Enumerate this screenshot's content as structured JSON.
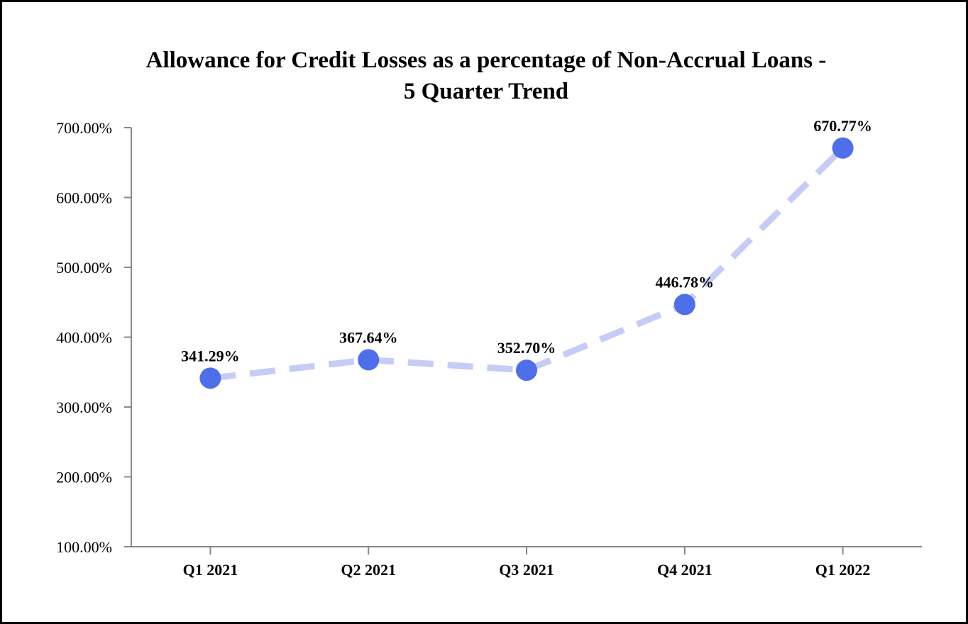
{
  "chart_data": {
    "type": "line",
    "title_lines": [
      "Allowance for Credit Losses as a percentage of Non-Accrual Loans -",
      "5 Quarter Trend"
    ],
    "xlabel": "",
    "ylabel": "",
    "categories": [
      "Q1 2021",
      "Q2 2021",
      "Q3 2021",
      "Q4 2021",
      "Q1 2022"
    ],
    "series": [
      {
        "values": [
          341.29,
          367.64,
          352.7,
          446.78,
          670.77
        ],
        "data_labels": [
          "341.29%",
          "367.64%",
          "352.70%",
          "446.78%",
          "670.77%"
        ]
      }
    ],
    "ylim": [
      100,
      700
    ],
    "yticks": [
      100,
      200,
      300,
      400,
      500,
      600,
      700
    ],
    "ytick_labels": [
      "100.00%",
      "200.00%",
      "300.00%",
      "400.00%",
      "500.00%",
      "600.00%",
      "700.00%"
    ],
    "grid": false,
    "line_style": "dashed",
    "colors": {
      "line": "#c5cdf6",
      "marker": "#4f6eea",
      "axis": "#888888"
    }
  }
}
